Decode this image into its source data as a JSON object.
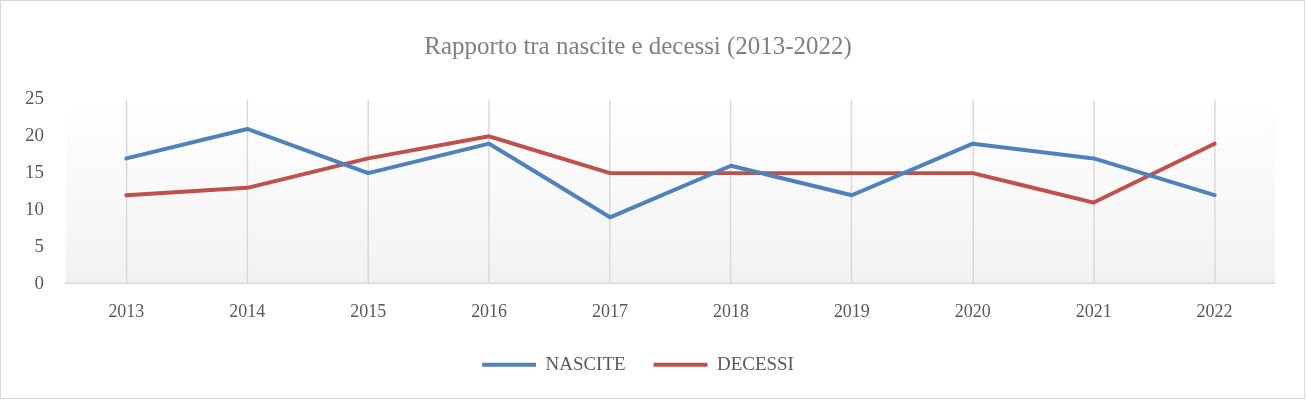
{
  "chart_data": {
    "type": "line",
    "title": "Rapporto tra nascite e decessi (2013-2022)",
    "categories": [
      "2013",
      "2014",
      "2015",
      "2016",
      "2017",
      "2018",
      "2019",
      "2020",
      "2021",
      "2022"
    ],
    "series": [
      {
        "name": "NASCITE",
        "color": "#4f81bd",
        "values": [
          17,
          21,
          15,
          19,
          9,
          16,
          12,
          19,
          17,
          12
        ]
      },
      {
        "name": "DECESSI",
        "color": "#c0504d",
        "values": [
          12,
          13,
          17,
          20,
          15,
          15,
          15,
          15,
          11,
          19
        ]
      }
    ],
    "ylim": [
      0,
      25
    ],
    "yticks": [
      0,
      5,
      10,
      15,
      20,
      25
    ],
    "grid": "x",
    "legend": "bottom",
    "marker": "none",
    "line_style": "solid"
  }
}
